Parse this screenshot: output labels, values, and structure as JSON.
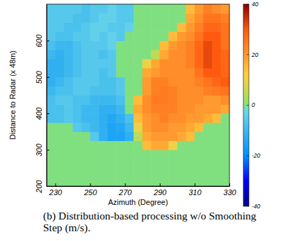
{
  "chart_data": {
    "type": "heatmap",
    "title": "(b) Distribution-based processing w/o Smoothing Step (m/s).",
    "x_label": "Azimuth (Degree)",
    "y_label": "Distance to Radar (x 48m)",
    "xlim": [
      225,
      330
    ],
    "ylim": [
      200,
      700
    ],
    "xticks": [
      230,
      250,
      270,
      290,
      310,
      330
    ],
    "yticks": [
      200,
      300,
      400,
      500,
      600
    ],
    "x_bins": [
      225,
      230,
      235,
      240,
      245,
      250,
      255,
      260,
      265,
      270,
      275,
      280,
      285,
      290,
      295,
      300,
      305,
      310,
      315,
      320,
      325,
      330
    ],
    "y_bins": [
      200,
      225,
      250,
      275,
      300,
      325,
      350,
      375,
      400,
      425,
      450,
      475,
      500,
      525,
      550,
      575,
      600,
      625,
      650,
      675,
      700
    ],
    "cells": [
      [
        0,
        0,
        0,
        0,
        0,
        0,
        0,
        0,
        0,
        0,
        0,
        0,
        0,
        0,
        0,
        0,
        0,
        0,
        0,
        0,
        0
      ],
      [
        0,
        0,
        0,
        0,
        0,
        0,
        0,
        0,
        0,
        0,
        0,
        0,
        0,
        0,
        0,
        0,
        0,
        0,
        0,
        0,
        0
      ],
      [
        0,
        0,
        0,
        0,
        0,
        0,
        0,
        0,
        0,
        0,
        0,
        0,
        0,
        0,
        0,
        0,
        0,
        0,
        0,
        0,
        0
      ],
      [
        0,
        0,
        0,
        0,
        0,
        0,
        0,
        0,
        0,
        0,
        0,
        0,
        0,
        0,
        0,
        0,
        0,
        0,
        0,
        0,
        0
      ],
      [
        0,
        0,
        0,
        0,
        0,
        0,
        0,
        0,
        0,
        0,
        0,
        15,
        18,
        18,
        10,
        0,
        0,
        0,
        0,
        0,
        0
      ],
      [
        0,
        0,
        0,
        0,
        0,
        -6,
        -12,
        -15,
        -15,
        -12,
        5,
        18,
        20,
        20,
        20,
        18,
        15,
        0,
        0,
        0,
        0
      ],
      [
        0,
        0,
        0,
        -6,
        -8,
        -10,
        -12,
        -15,
        -14,
        -10,
        10,
        20,
        22,
        22,
        20,
        20,
        18,
        15,
        0,
        0,
        0
      ],
      [
        -8,
        -8,
        -6,
        -8,
        -10,
        -10,
        -12,
        -14,
        -12,
        -8,
        15,
        20,
        22,
        24,
        22,
        22,
        20,
        20,
        18,
        15,
        0
      ],
      [
        -8,
        -8,
        -6,
        -8,
        -10,
        -10,
        -12,
        -12,
        -10,
        0,
        18,
        22,
        24,
        24,
        24,
        22,
        22,
        20,
        20,
        20,
        18
      ],
      [
        -8,
        -6,
        -6,
        -8,
        -8,
        -10,
        -10,
        -10,
        -8,
        0,
        15,
        22,
        25,
        25,
        24,
        22,
        22,
        22,
        20,
        20,
        22
      ],
      [
        -10,
        -8,
        -8,
        -6,
        -6,
        -8,
        -8,
        -8,
        -6,
        0,
        0,
        20,
        24,
        25,
        24,
        22,
        22,
        22,
        24,
        25,
        26
      ],
      [
        -12,
        -10,
        -8,
        -6,
        -6,
        -6,
        -8,
        -8,
        -6,
        0,
        0,
        20,
        24,
        24,
        22,
        22,
        22,
        24,
        26,
        28,
        30
      ],
      [
        -12,
        -12,
        -10,
        -8,
        -6,
        -6,
        -8,
        -6,
        0,
        0,
        0,
        18,
        20,
        22,
        22,
        22,
        22,
        26,
        30,
        30,
        28
      ],
      [
        -12,
        -12,
        -10,
        -8,
        -6,
        -6,
        -6,
        -6,
        0,
        0,
        0,
        10,
        18,
        22,
        22,
        22,
        24,
        28,
        32,
        30,
        28
      ],
      [
        -10,
        -12,
        -10,
        -8,
        -6,
        -6,
        -8,
        -6,
        0,
        0,
        0,
        0,
        5,
        18,
        22,
        22,
        24,
        28,
        32,
        30,
        28
      ],
      [
        -8,
        -10,
        -10,
        -8,
        -6,
        -6,
        -6,
        -4,
        0,
        0,
        0,
        0,
        0,
        15,
        20,
        22,
        24,
        28,
        32,
        30,
        26
      ],
      [
        -6,
        -8,
        -8,
        -6,
        -6,
        -4,
        -6,
        -4,
        -6,
        0,
        0,
        0,
        0,
        0,
        15,
        20,
        22,
        26,
        30,
        30,
        26
      ],
      [
        -6,
        -6,
        -8,
        -8,
        -6,
        -4,
        -4,
        -6,
        -6,
        -4,
        0,
        0,
        0,
        0,
        0,
        15,
        20,
        24,
        28,
        28,
        26
      ],
      [
        -6,
        -6,
        -6,
        -8,
        -8,
        -6,
        -4,
        -4,
        -6,
        -6,
        0,
        0,
        0,
        0,
        0,
        0,
        18,
        22,
        26,
        26,
        24
      ],
      [
        -6,
        -6,
        -6,
        -6,
        -8,
        -6,
        -6,
        -4,
        -6,
        -6,
        0,
        0,
        0,
        0,
        0,
        0,
        15,
        20,
        24,
        22,
        20
      ]
    ],
    "colorbar": {
      "range": [
        -40,
        40
      ],
      "ticks": [
        -40,
        -20,
        0,
        20,
        40
      ]
    }
  }
}
